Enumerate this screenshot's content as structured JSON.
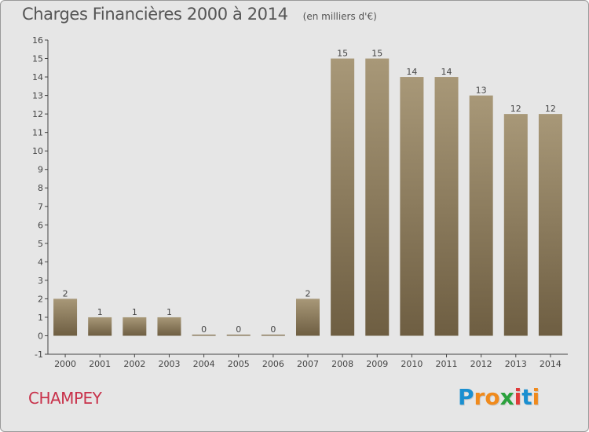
{
  "chart_data": {
    "type": "bar",
    "title": "Charges Financières 2000 à 2014",
    "subtitle": "(en milliers d'€)",
    "categories": [
      "2000",
      "2001",
      "2002",
      "2003",
      "2004",
      "2005",
      "2006",
      "2007",
      "2008",
      "2009",
      "2010",
      "2011",
      "2012",
      "2013",
      "2014"
    ],
    "values": [
      2,
      1,
      1,
      1,
      0,
      0,
      0,
      2,
      15,
      15,
      14,
      14,
      13,
      12,
      12
    ],
    "ylim": [
      -1,
      16
    ],
    "yticks": [
      -1,
      0,
      1,
      2,
      3,
      4,
      5,
      6,
      7,
      8,
      9,
      10,
      11,
      12,
      13,
      14,
      15,
      16
    ],
    "grid": false,
    "legend": "none",
    "bar_color_top": "#a89878",
    "bar_color_bottom": "#6e5e42"
  },
  "commune": "CHAMPEY",
  "logo": {
    "letters": [
      "P",
      "r",
      "o",
      "x",
      "i",
      "t",
      "i"
    ],
    "colors": [
      "#1a8fd0",
      "#f08a1c",
      "#f08a1c",
      "#2aa13c",
      "#e03a3a",
      "#1a8fd0",
      "#f08a1c"
    ]
  }
}
